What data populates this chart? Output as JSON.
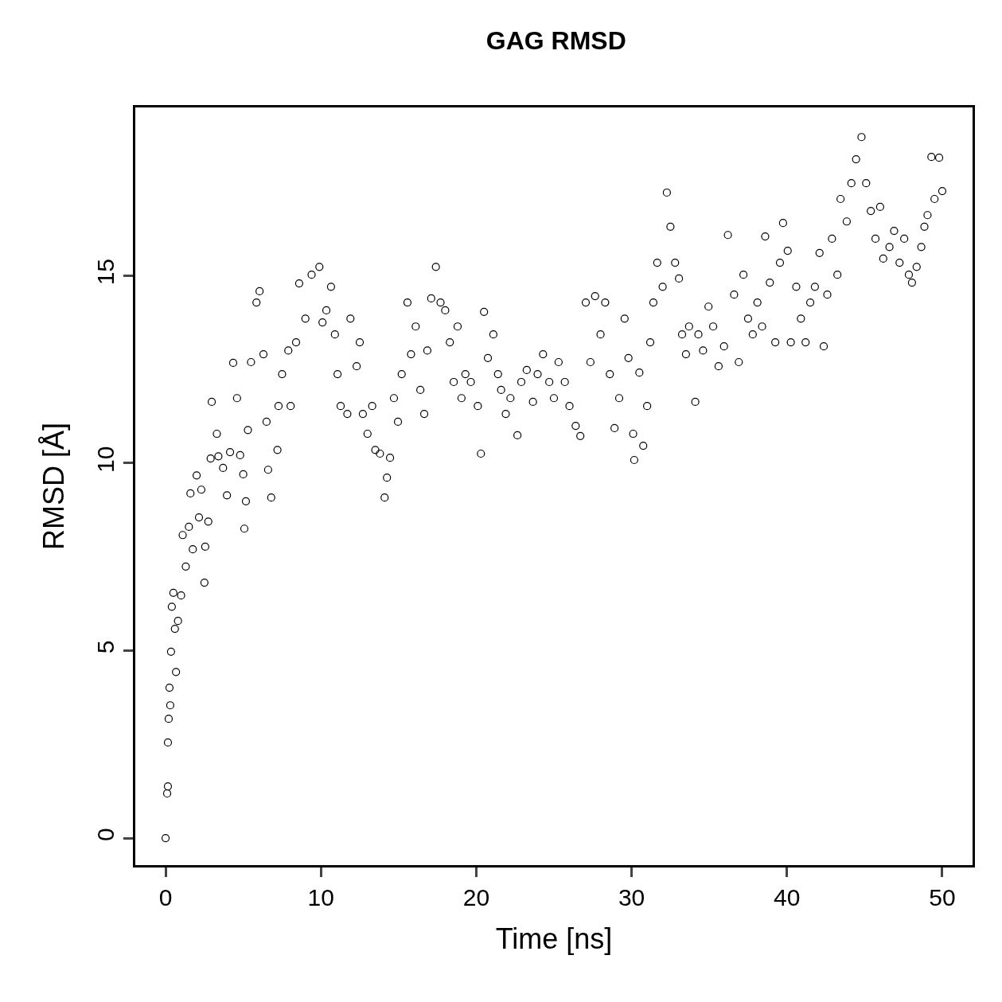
{
  "chart_data": {
    "type": "scatter",
    "title": "GAG RMSD",
    "xlabel": "Time [ns]",
    "ylabel": "RMSD [Å]",
    "xlim": [
      -1.95,
      51.95
    ],
    "ylim": [
      -0.72,
      19.48
    ],
    "xticks": [
      0,
      10,
      20,
      30,
      40,
      50
    ],
    "yticks": [
      0,
      5,
      10,
      15
    ],
    "marker": "circle",
    "series": [
      {
        "color": "#000000",
        "x": [
          0,
          0.1,
          0.15,
          0.15,
          0.2,
          0.3,
          0.25,
          0.35,
          0.67,
          0.4,
          0.5,
          0.6,
          0.8,
          1.0,
          1.1,
          1.3,
          1.5,
          1.6,
          1.75,
          2.0,
          2.15,
          2.3,
          2.5,
          2.55,
          2.75,
          2.9,
          2.97,
          3.3,
          3.4,
          3.7,
          3.95,
          4.15,
          4.35,
          4.6,
          4.8,
          5.0,
          5.17,
          5.07,
          5.3,
          5.5,
          5.85,
          6.05,
          6.3,
          6.5,
          6.6,
          6.8,
          7.2,
          7.27,
          7.5,
          7.9,
          8.05,
          8.4,
          8.6,
          9.0,
          9.4,
          9.9,
          10.1,
          10.35,
          10.65,
          10.9,
          11.07,
          11.27,
          11.7,
          11.9,
          12.3,
          12.5,
          12.7,
          13.0,
          13.3,
          13.5,
          13.8,
          14.1,
          14.25,
          14.45,
          14.7,
          14.96,
          15.2,
          15.57,
          15.8,
          16.1,
          16.4,
          16.65,
          16.85,
          17.1,
          17.4,
          17.7,
          18.0,
          18.3,
          18.55,
          18.8,
          19.05,
          19.3,
          19.65,
          20.1,
          20.3,
          20.5,
          20.75,
          21.1,
          21.4,
          21.6,
          21.9,
          22.2,
          22.65,
          22.9,
          23.25,
          23.65,
          23.95,
          24.3,
          24.7,
          25.0,
          25.3,
          25.7,
          26.0,
          26.4,
          26.7,
          27.05,
          27.35,
          27.65,
          28.0,
          28.3,
          28.6,
          28.9,
          29.2,
          29.55,
          29.8,
          30.1,
          30.17,
          30.5,
          30.75,
          31.0,
          31.2,
          31.4,
          31.65,
          32.0,
          32.27,
          32.5,
          32.8,
          33.05,
          33.25,
          33.5,
          33.7,
          34.1,
          34.3,
          34.6,
          34.95,
          35.25,
          35.6,
          35.95,
          36.2,
          36.6,
          36.9,
          37.2,
          37.5,
          37.8,
          38.1,
          38.4,
          38.6,
          38.9,
          39.25,
          39.55,
          39.75,
          40.05,
          40.25,
          40.6,
          40.9,
          41.2,
          41.5,
          41.8,
          42.1,
          42.37,
          42.6,
          42.9,
          43.25,
          43.45,
          43.85,
          44.15,
          44.45,
          44.8,
          45.1,
          45.4,
          45.7,
          46.0,
          46.2,
          46.6,
          46.9,
          47.25,
          47.55,
          47.85,
          48.05,
          48.35,
          48.65,
          48.85,
          49.05,
          49.3,
          49.5,
          49.8,
          50.0
        ],
        "values": [
          0,
          1.19,
          1.38,
          2.55,
          3.18,
          3.54,
          4.01,
          4.97,
          4.43,
          6.17,
          6.54,
          5.58,
          5.79,
          6.47,
          8.08,
          7.24,
          8.3,
          9.19,
          7.7,
          9.67,
          8.55,
          9.29,
          6.81,
          7.77,
          8.44,
          10.12,
          11.63,
          10.78,
          10.18,
          9.87,
          9.14,
          10.29,
          12.67,
          11.73,
          10.21,
          9.7,
          8.98,
          8.25,
          10.88,
          12.69,
          14.28,
          14.58,
          12.9,
          11.1,
          9.82,
          9.08,
          10.35,
          11.52,
          12.37,
          13.0,
          11.52,
          13.22,
          14.79,
          13.85,
          15.02,
          15.23,
          13.75,
          14.07,
          14.7,
          13.43,
          12.37,
          11.52,
          11.31,
          13.85,
          12.58,
          13.22,
          11.31,
          10.78,
          11.52,
          10.35,
          10.25,
          9.08,
          9.61,
          10.14,
          11.73,
          11.1,
          12.37,
          14.28,
          12.9,
          13.64,
          11.95,
          11.31,
          13.0,
          14.39,
          15.23,
          14.28,
          14.07,
          13.22,
          12.16,
          13.64,
          11.73,
          12.37,
          12.16,
          11.52,
          10.25,
          14.03,
          12.8,
          13.43,
          12.37,
          11.95,
          11.31,
          11.73,
          10.74,
          12.16,
          12.48,
          11.63,
          12.37,
          12.9,
          12.16,
          11.73,
          12.69,
          12.16,
          11.52,
          10.99,
          10.72,
          14.28,
          12.69,
          14.45,
          13.43,
          14.28,
          12.37,
          10.93,
          11.73,
          13.85,
          12.8,
          10.78,
          10.08,
          12.41,
          10.46,
          11.52,
          13.22,
          14.28,
          15.34,
          14.7,
          17.21,
          16.3,
          15.34,
          14.92,
          13.43,
          12.9,
          13.64,
          11.63,
          13.43,
          13.0,
          14.17,
          13.64,
          12.58,
          13.11,
          16.08,
          14.49,
          12.69,
          15.02,
          13.85,
          13.43,
          14.28,
          13.64,
          16.04,
          14.81,
          13.22,
          15.34,
          16.4,
          15.66,
          13.22,
          14.7,
          13.85,
          13.22,
          14.28,
          14.7,
          15.6,
          13.11,
          14.49,
          15.98,
          15.02,
          17.04,
          16.44,
          17.46,
          18.1,
          18.69,
          17.46,
          16.72,
          15.98,
          16.83,
          15.45,
          15.76,
          16.19,
          15.34,
          15.98,
          15.02,
          14.81,
          15.23,
          15.76,
          16.3,
          16.61,
          18.16,
          17.04,
          18.14,
          17.25
        ]
      }
    ]
  }
}
